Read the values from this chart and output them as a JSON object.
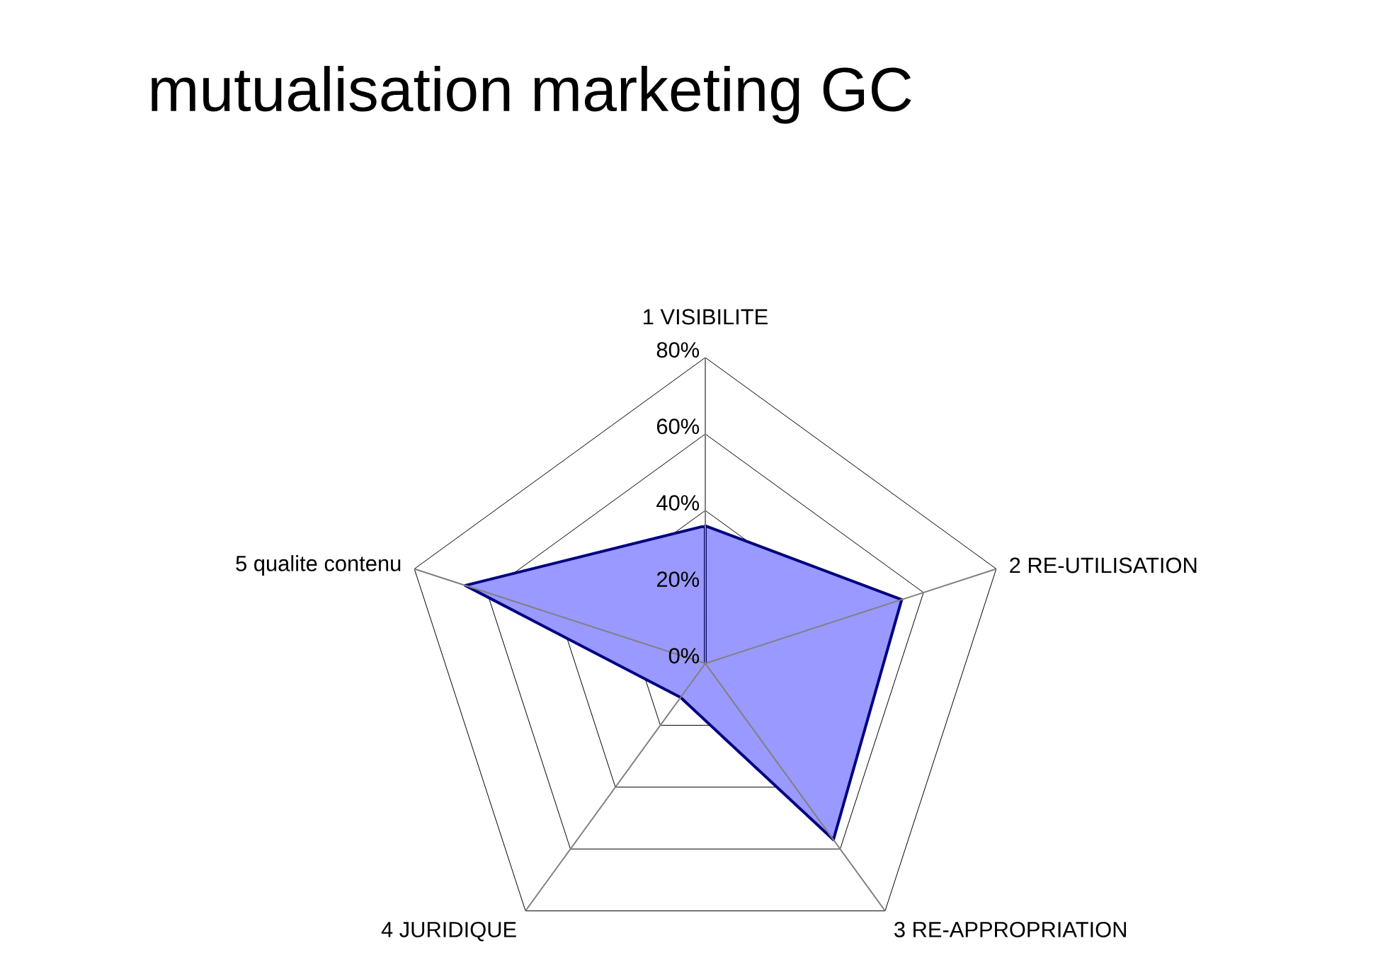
{
  "chart_data": {
    "type": "radar",
    "title": "mutualisation marketing GC",
    "categories": [
      "1 VISIBILITE",
      "2 RE-UTILISATION",
      "3 RE-APPROPRIATION",
      "4 JURIDIQUE",
      "5 qualite contenu"
    ],
    "series": [
      {
        "color": "#9999ff",
        "values": [
          36,
          54,
          57,
          11,
          66
        ]
      }
    ],
    "ylim": [
      0,
      80
    ],
    "yticks": [
      {
        "value": 0,
        "label": "0%"
      },
      {
        "value": 20,
        "label": "20%"
      },
      {
        "value": 40,
        "label": "40%"
      },
      {
        "value": 60,
        "label": "60%"
      },
      {
        "value": 80,
        "label": "80%"
      }
    ],
    "grid": true,
    "marker": "none"
  }
}
